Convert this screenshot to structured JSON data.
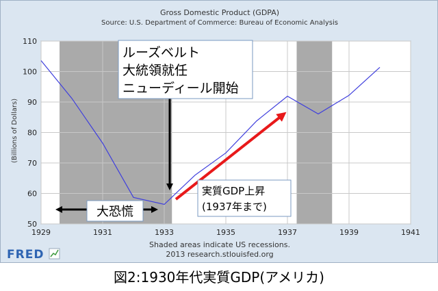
{
  "chart_data": {
    "type": "line",
    "title": "Gross Domestic Product (GDPA)",
    "subtitle": "Source: U.S. Department of Commerce: Bureau of Economic Analysis",
    "xlabel": "",
    "ylabel": "(Billions of Dollars)",
    "xlim": [
      1929,
      1941
    ],
    "ylim": [
      50,
      110
    ],
    "x_ticks": [
      "1929",
      "1931",
      "1933",
      "1935",
      "1937",
      "1939",
      "1941"
    ],
    "y_ticks": [
      "50",
      "60",
      "70",
      "80",
      "90",
      "100",
      "110"
    ],
    "x": [
      1929,
      1930,
      1931,
      1932,
      1933,
      1934,
      1935,
      1936,
      1937,
      1938,
      1939,
      1940
    ],
    "series": [
      {
        "values": [
          103.6,
          91.2,
          76.5,
          58.7,
          56.4,
          66.0,
          73.3,
          83.8,
          91.9,
          86.1,
          92.2,
          101.4
        ],
        "color": "#3f3fdd"
      }
    ],
    "recessions": [
      [
        1929.6,
        1933.25
      ],
      [
        1937.3,
        1938.45
      ]
    ],
    "grid": true,
    "legend": "none",
    "footer_lines": [
      "Shaded areas indicate US recessions.",
      "2013 research.stlouisfed.org"
    ],
    "annotations": [
      {
        "lines": [
          "ルーズベルト",
          "大統領就任",
          "ニューディール開始"
        ]
      },
      {
        "lines": [
          "大恐慌"
        ]
      },
      {
        "lines": [
          "実質GDP上昇",
          "(1937年まで)"
        ]
      }
    ]
  },
  "logo": {
    "text": "FRED"
  },
  "caption": "図2:1930年代実質GDP(アメリカ)",
  "colors": {
    "line": "#3f3fdd",
    "recession": "#aaaaaa",
    "arrow_red": "#e8191a",
    "logo_blue": "#2e64b2"
  }
}
